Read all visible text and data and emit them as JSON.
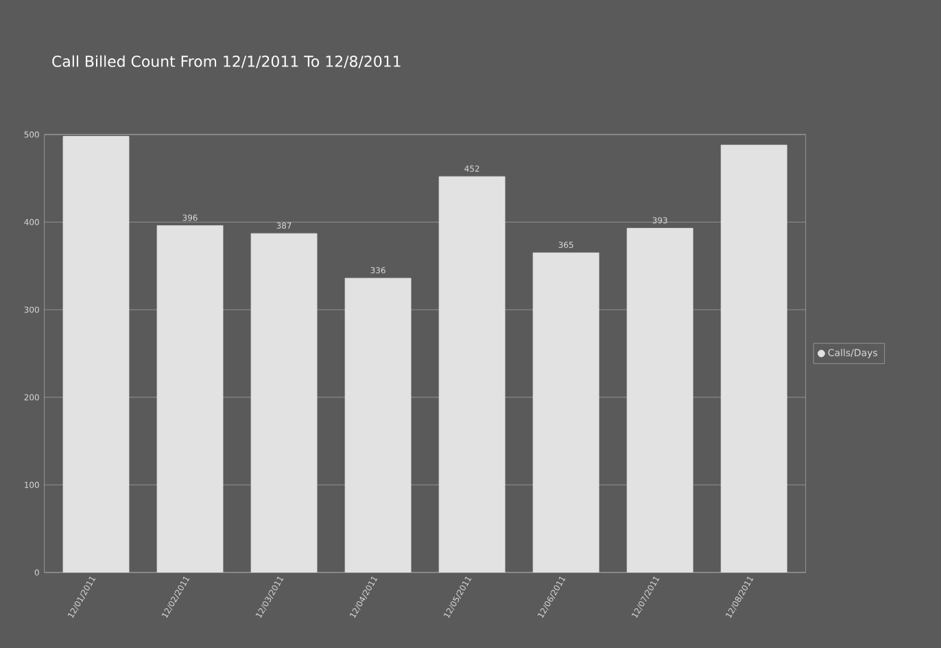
{
  "chart_data": {
    "type": "bar",
    "title": "Call Billed Count From 12/1/2011 To 12/8/2011",
    "categories": [
      "12/01/2011",
      "12/02/2011",
      "12/03/2011",
      "12/04/2011",
      "12/05/2011",
      "12/06/2011",
      "12/07/2011",
      "12/08/2011"
    ],
    "series": [
      {
        "name": "Calls/Days",
        "color": "#e2e2e2",
        "values": [
          498,
          396,
          387,
          336,
          452,
          365,
          393,
          488
        ],
        "value_labels": [
          null,
          "396",
          "387",
          "336",
          "452",
          "365",
          "393",
          null
        ]
      }
    ],
    "ylim": [
      0,
      500
    ],
    "yticks": [
      0,
      100,
      200,
      300,
      400,
      500
    ],
    "grid": "y",
    "legend": "right"
  }
}
